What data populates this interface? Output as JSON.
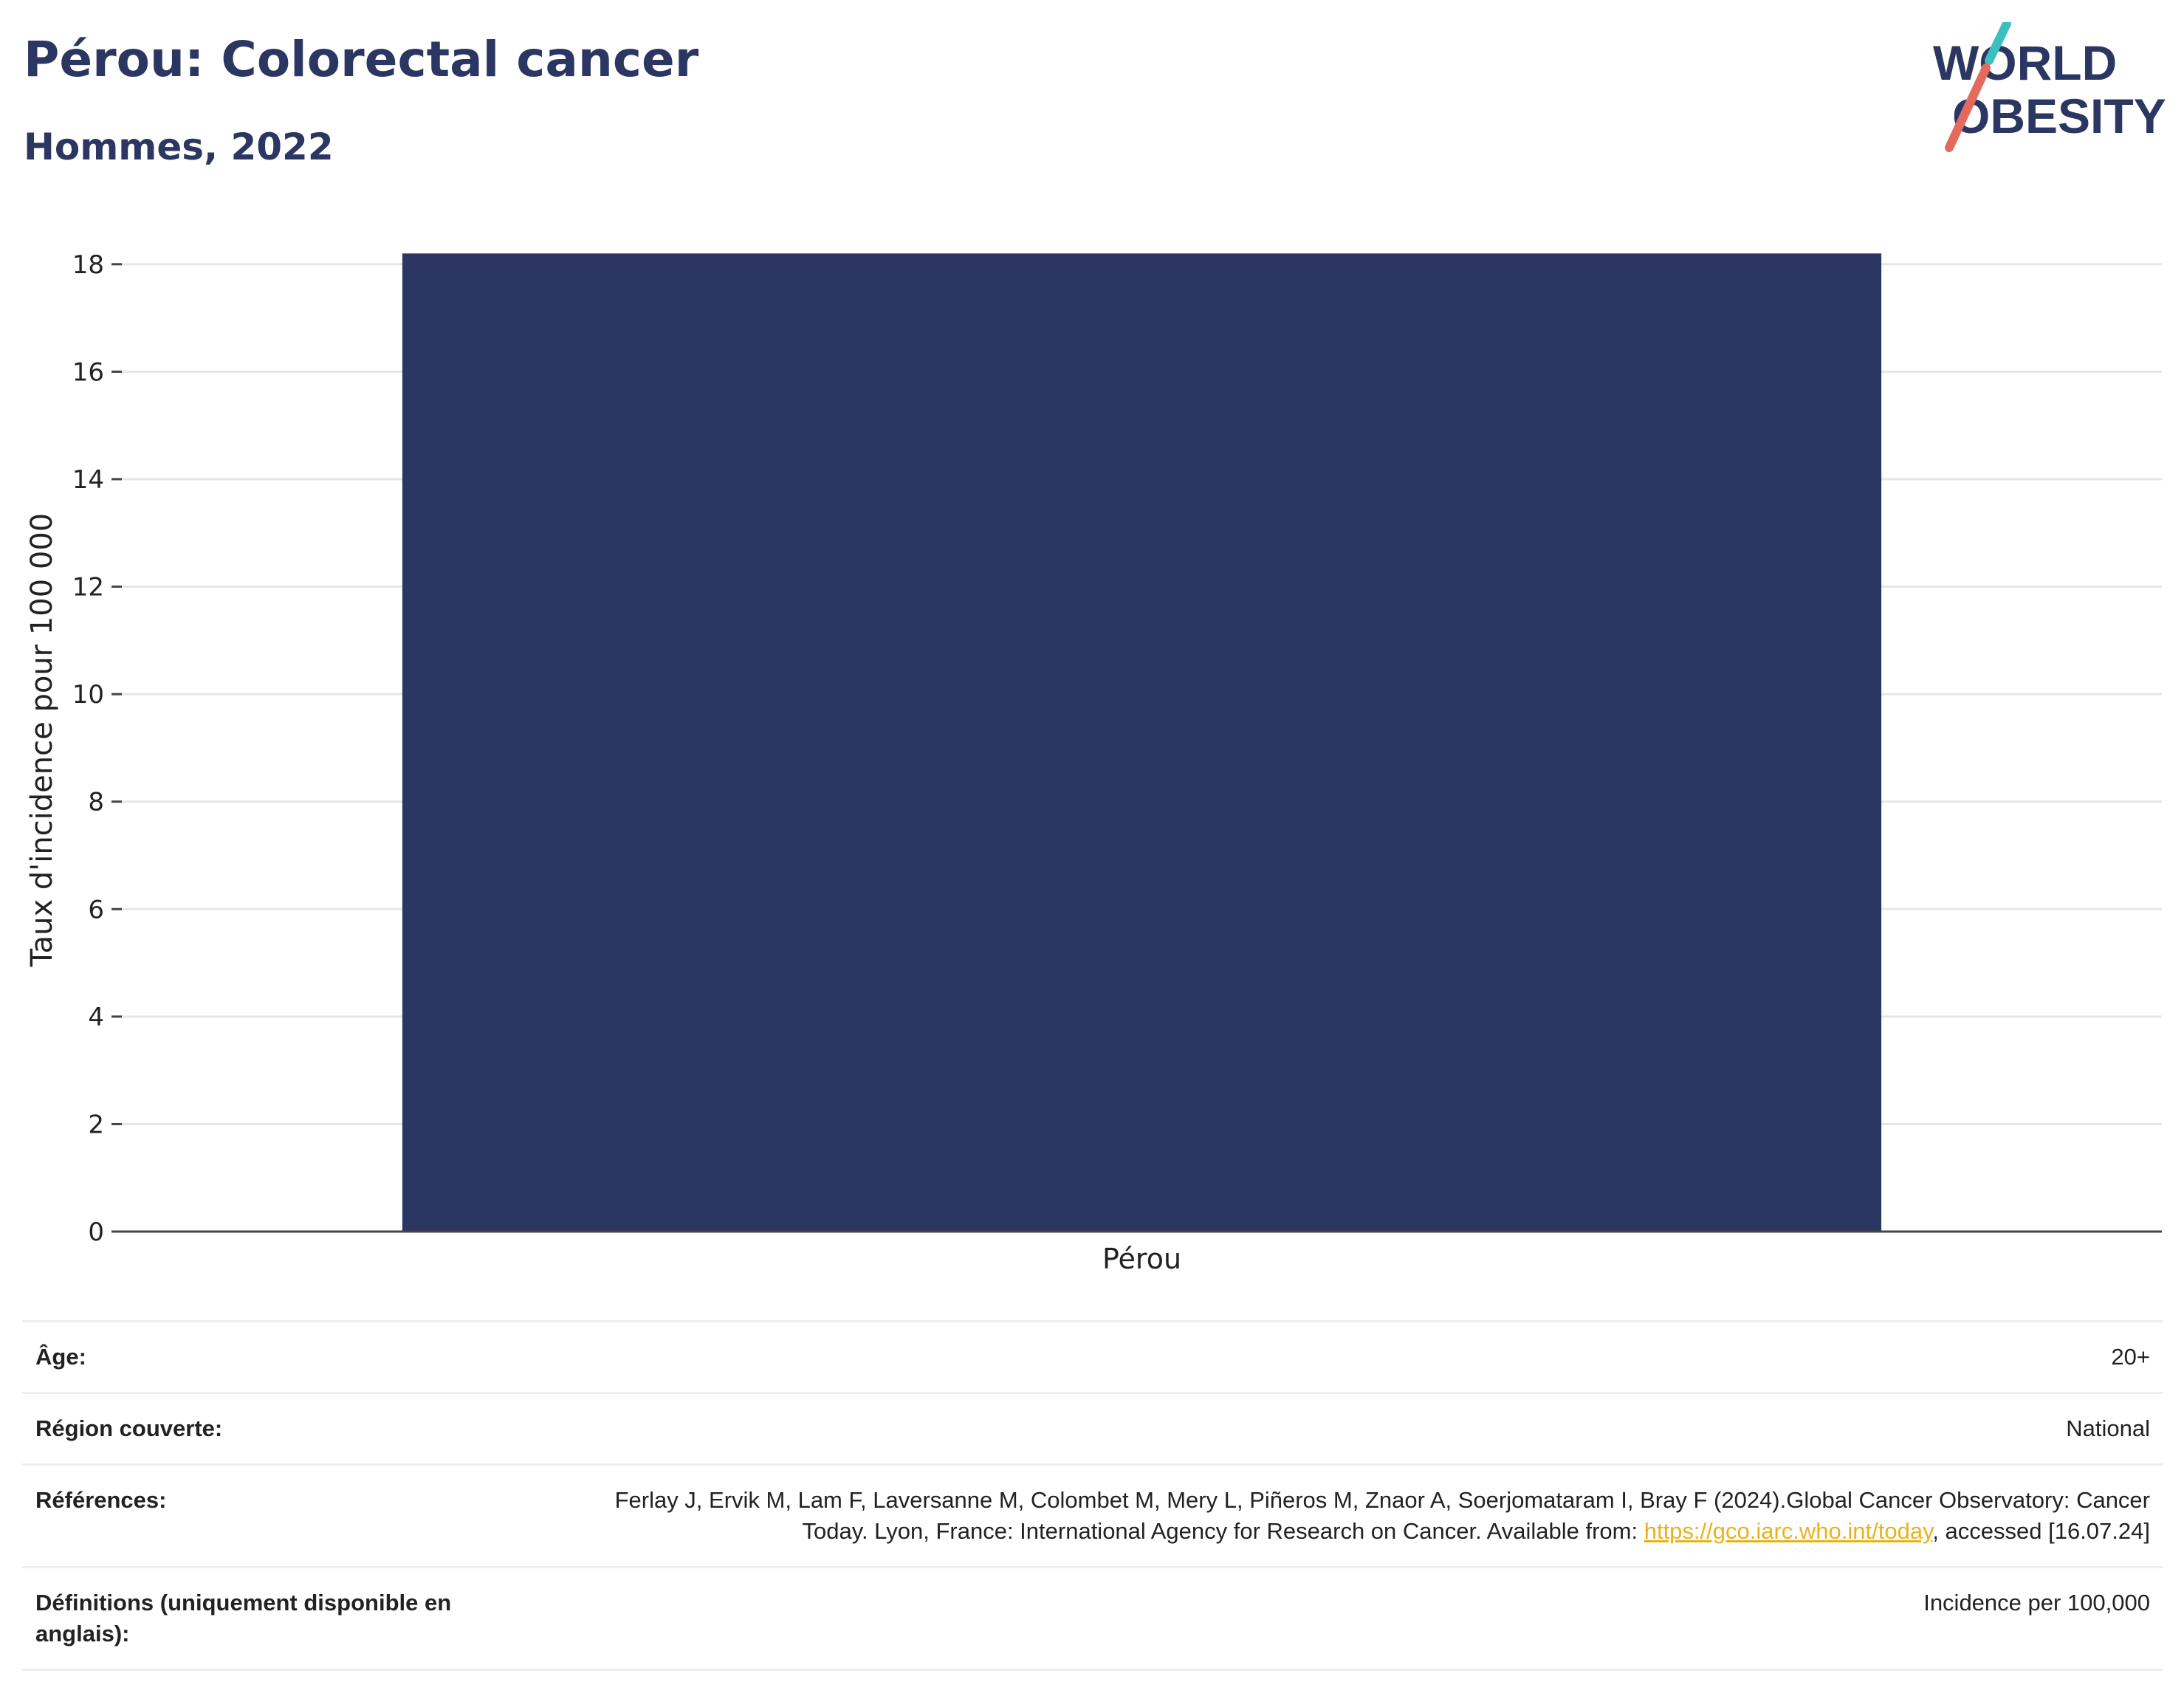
{
  "header": {
    "title": "Pérou: Colorectal cancer",
    "subtitle": "Hommes, 2022"
  },
  "logo": {
    "line1": "WORLD",
    "line2": "OBESITY"
  },
  "colors": {
    "bar": "#2b3762",
    "title": "#2b3762",
    "grid": "#e6e6e6",
    "axis": "#444444",
    "link": "#e9b21c",
    "logo_teal": "#3bbfbf",
    "logo_coral": "#e56a5e"
  },
  "chart_data": {
    "type": "bar",
    "categories": [
      "Pérou"
    ],
    "values": [
      18.2
    ],
    "ylabel": "Taux d'incidence pour 100 000",
    "xlabel": "",
    "ylim": [
      0,
      18.3
    ],
    "yticks": [
      0,
      2,
      4,
      6,
      8,
      10,
      12,
      14,
      16,
      18
    ],
    "grid": true
  },
  "meta": {
    "rows": [
      {
        "label": "Âge:",
        "value": "20+"
      },
      {
        "label": "Région couverte:",
        "value": "National"
      },
      {
        "label": "Références:",
        "value_before": "Ferlay J, Ervik M, Lam F, Laversanne M, Colombet M, Mery L, Piñeros M, Znaor A, Soerjomataram I, Bray F (2024).Global Cancer Observatory: Cancer Today. Lyon, France: International Agency for Research on Cancer. Available from: ",
        "link": "https://gco.iarc.who.int/today",
        "value_after": ", accessed [16.07.24]"
      },
      {
        "label": "Définitions (uniquement disponible en anglais):",
        "value": "Incidence per 100,000"
      }
    ]
  }
}
